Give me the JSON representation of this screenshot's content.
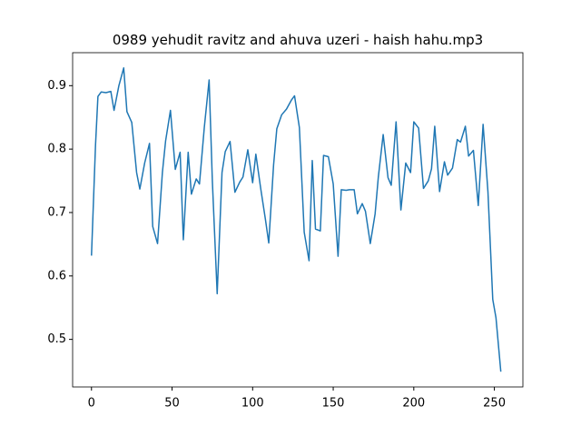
{
  "chart_data": {
    "type": "line",
    "title": "0989 yehudit ravitz and ahuva uzeri - haish hahu.mp3",
    "color": "#1f77b4",
    "x": [
      0,
      2.5,
      4,
      6,
      9,
      12,
      14,
      17,
      20,
      22,
      25,
      28,
      30,
      33,
      36,
      38,
      41,
      44,
      46,
      49,
      52,
      55,
      57,
      60,
      62,
      65,
      67,
      70,
      73,
      75,
      78,
      81,
      83,
      86,
      89,
      92,
      94,
      97,
      100,
      102,
      105,
      108,
      110,
      113,
      115,
      118,
      121,
      124,
      126,
      129,
      132,
      135,
      137,
      139,
      142,
      144,
      147,
      150,
      153,
      155,
      158,
      160,
      163,
      165,
      168,
      170,
      173,
      176,
      178,
      181,
      184,
      186,
      189,
      192,
      195,
      198,
      200,
      203,
      206,
      209,
      211,
      213,
      216,
      219,
      221,
      224,
      227,
      229,
      232,
      234,
      237,
      240,
      243,
      246,
      249,
      251,
      254
    ],
    "values": [
      0.632,
      0.806,
      0.883,
      0.89,
      0.889,
      0.891,
      0.861,
      0.9,
      0.928,
      0.859,
      0.842,
      0.763,
      0.737,
      0.778,
      0.809,
      0.678,
      0.651,
      0.763,
      0.813,
      0.861,
      0.768,
      0.795,
      0.657,
      0.795,
      0.729,
      0.753,
      0.745,
      0.834,
      0.909,
      0.75,
      0.572,
      0.763,
      0.796,
      0.812,
      0.732,
      0.748,
      0.756,
      0.799,
      0.747,
      0.792,
      0.738,
      0.688,
      0.652,
      0.775,
      0.832,
      0.854,
      0.863,
      0.877,
      0.884,
      0.834,
      0.669,
      0.624,
      0.782,
      0.674,
      0.671,
      0.79,
      0.788,
      0.745,
      0.631,
      0.736,
      0.735,
      0.736,
      0.736,
      0.698,
      0.714,
      0.702,
      0.651,
      0.698,
      0.756,
      0.823,
      0.755,
      0.743,
      0.843,
      0.704,
      0.778,
      0.763,
      0.843,
      0.833,
      0.738,
      0.75,
      0.769,
      0.836,
      0.733,
      0.78,
      0.759,
      0.77,
      0.815,
      0.811,
      0.836,
      0.789,
      0.798,
      0.711,
      0.839,
      0.733,
      0.563,
      0.534,
      0.449
    ],
    "xlim": [
      -11.7,
      267.7
    ],
    "ylim": [
      0.425,
      0.952
    ],
    "xticks": [
      0,
      50,
      100,
      150,
      200,
      250
    ],
    "yticks": [
      0.5,
      0.6,
      0.7,
      0.8,
      0.9
    ]
  }
}
